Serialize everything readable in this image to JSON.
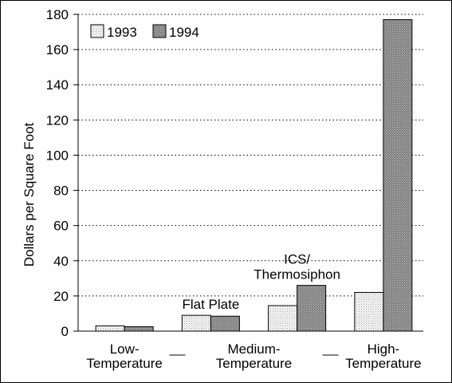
{
  "chart_data": {
    "type": "bar",
    "title": "",
    "xlabel": "",
    "ylabel": "Dollars per Square Foot",
    "ylim": [
      0,
      180
    ],
    "yticks": [
      0,
      20,
      40,
      60,
      80,
      100,
      120,
      140,
      160,
      180
    ],
    "grid": true,
    "legend_position": "top-left",
    "categories": [
      [
        "Low-",
        "Temperature"
      ],
      [
        "Medium-",
        "Temperature"
      ],
      [
        "Medium-",
        "Temperature"
      ],
      [
        "High-",
        "Temperature"
      ]
    ],
    "series": [
      {
        "name": "1993",
        "values": [
          3,
          9,
          14.5,
          22
        ],
        "color": "#e6e6e6"
      },
      {
        "name": "1994",
        "values": [
          2.5,
          8.5,
          26,
          177
        ],
        "color": "#8a8a8a"
      }
    ],
    "annotations": [
      {
        "group": 1,
        "lines": [
          "Flat Plate"
        ]
      },
      {
        "group": 2,
        "lines": [
          "ICS/",
          "Thermosiphon"
        ]
      }
    ],
    "group_labels": [
      {
        "lines": [
          "Low-",
          "Temperature"
        ],
        "groups": [
          0
        ]
      },
      {
        "lines": [
          "Medium-",
          "Temperature"
        ],
        "groups": [
          1,
          2
        ]
      },
      {
        "lines": [
          "High-",
          "Temperature"
        ],
        "groups": [
          3
        ]
      }
    ]
  }
}
